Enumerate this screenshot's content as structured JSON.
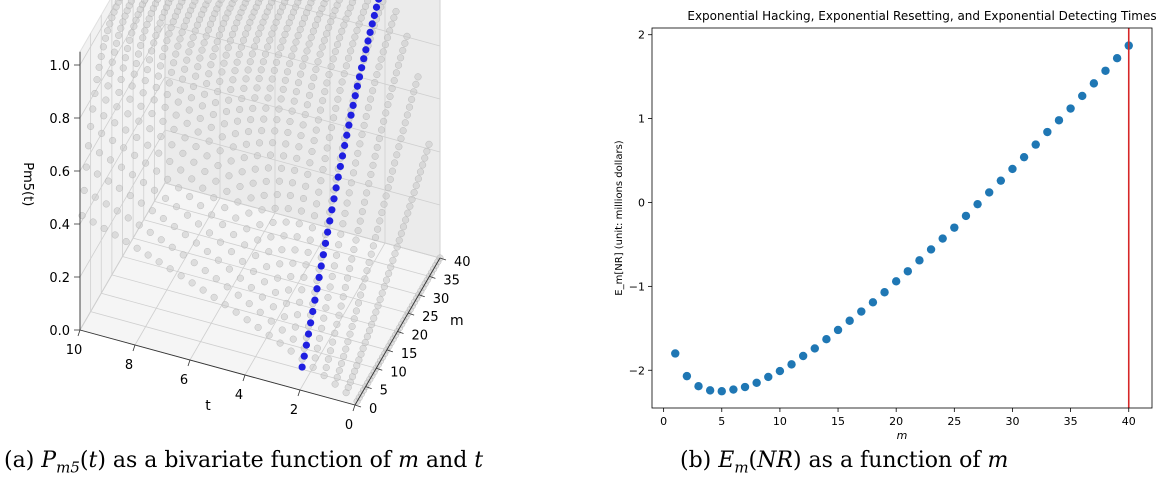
{
  "chart_data": [
    {
      "type": "scatter-3d",
      "xlabel": "m",
      "ylabel": "t",
      "zlabel": "P_{m5}(t)",
      "m_ticks": [
        0,
        5,
        10,
        15,
        20,
        25,
        30,
        35,
        40
      ],
      "t_ticks": [
        0,
        2,
        4,
        6,
        8,
        10
      ],
      "z_ticks": [
        "0.0",
        "0.2",
        "0.4",
        "0.6",
        "0.8",
        "1.0"
      ],
      "xlim": [
        0,
        40
      ],
      "ylim": [
        0,
        10
      ],
      "zlim": [
        0,
        1
      ],
      "grid": true,
      "highlight_t": 2,
      "colors": {
        "surface": "#c8c8c8",
        "highlight": "#1f1fe0"
      }
    },
    {
      "type": "scatter",
      "title": "Exponential Hacking, Exponential Resetting, and Exponential Detecting Times",
      "xlabel": "m",
      "ylabel": "E_m[NR] (unit: millions dollars)",
      "xlim": [
        -1,
        42
      ],
      "ylim": [
        -2.45,
        2.08
      ],
      "x_ticks": [
        0,
        5,
        10,
        15,
        20,
        25,
        30,
        35,
        40
      ],
      "y_ticks": [
        -2,
        -1,
        0,
        1,
        2
      ],
      "x": [
        1,
        2,
        3,
        4,
        5,
        6,
        7,
        8,
        9,
        10,
        11,
        12,
        13,
        14,
        15,
        16,
        17,
        18,
        19,
        20,
        21,
        22,
        23,
        24,
        25,
        26,
        27,
        28,
        29,
        30,
        31,
        32,
        33,
        34,
        35,
        36,
        37,
        38,
        39,
        40
      ],
      "y": [
        -1.8,
        -2.07,
        -2.19,
        -2.24,
        -2.25,
        -2.23,
        -2.2,
        -2.15,
        -2.08,
        -2.01,
        -1.93,
        -1.83,
        -1.74,
        -1.63,
        -1.52,
        -1.41,
        -1.3,
        -1.19,
        -1.07,
        -0.94,
        -0.82,
        -0.69,
        -0.56,
        -0.43,
        -0.3,
        -0.16,
        -0.02,
        0.12,
        0.26,
        0.4,
        0.54,
        0.69,
        0.84,
        0.98,
        1.12,
        1.27,
        1.42,
        1.57,
        1.72,
        1.87
      ],
      "vline_x": 40,
      "colors": {
        "points": "#1f77b4",
        "vline": "#d62728"
      }
    }
  ],
  "captions": {
    "a_prefix": "(a)  ",
    "a_symbol": "P",
    "a_sub": "m5",
    "a_rest_1": "(",
    "a_var_t": "t",
    "a_rest_2": ") as a bivariate function of ",
    "a_var_m": "m",
    "a_rest_3": " and ",
    "a_var_t2": "t",
    "b_prefix": "(b)  ",
    "b_symbol": "E",
    "b_sub": "m",
    "b_rest_1": "(",
    "b_var": "NR",
    "b_rest_2": ") as a function of ",
    "b_var_m": "m"
  }
}
